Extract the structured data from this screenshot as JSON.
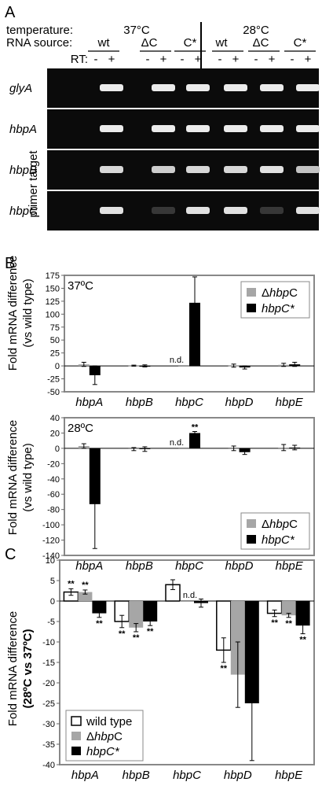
{
  "panel_a": {
    "letter": "A",
    "row_labels": {
      "temperature": "temperature:",
      "rna_source": "RNA source:",
      "rt": "RT:"
    },
    "temperatures": [
      "37°C",
      "28°C"
    ],
    "sources": [
      "wt",
      "ΔC",
      "C*",
      "wt",
      "ΔC",
      "C*"
    ],
    "rt_minus": "-",
    "rt_plus": "+",
    "side_label": "primer target",
    "genes": [
      "glyA",
      "hbpA",
      "hbpB",
      "hbpC"
    ],
    "band_intensity": [
      [
        1,
        1,
        1,
        1,
        1,
        1
      ],
      [
        1,
        1,
        1,
        1,
        1,
        1
      ],
      [
        0.9,
        0.85,
        0.9,
        0.9,
        0.95,
        0.8
      ],
      [
        0.95,
        0.1,
        0.95,
        0.95,
        0.1,
        0.95
      ]
    ]
  },
  "panel_b": {
    "letter": "B",
    "ylabel_line1": "Fold mRNA difference",
    "ylabel_line2": "(vs wild type)",
    "nd": "n.d.",
    "legend": {
      "delta_prefix": "Δ",
      "delta_italic": "hbp",
      "delta_suffix": "C",
      "cstar": "hbpC*"
    },
    "colors": {
      "delta": "#a6a6a6",
      "cstar": "#000000"
    }
  },
  "chart_data": [
    {
      "type": "bar",
      "annotation": "37ºC",
      "categories": [
        "hbpA",
        "hbpB",
        "hbpC",
        "hbpD",
        "hbpE"
      ],
      "series": [
        {
          "name": "ΔhbpC",
          "values": [
            3,
            0.5,
            0,
            0.5,
            2
          ],
          "errors": [
            4,
            1,
            0,
            3,
            3
          ]
        },
        {
          "name": "hbpC*",
          "values": [
            -18,
            0,
            122,
            -3,
            3
          ],
          "errors": [
            18,
            2,
            50,
            3,
            4
          ]
        }
      ],
      "ylim": [
        -50,
        175
      ],
      "yticks": [
        -50,
        -25,
        0,
        25,
        50,
        75,
        100,
        125,
        150,
        175
      ],
      "na_index": 2,
      "legend_position": "top-right"
    },
    {
      "type": "bar",
      "annotation": "28ºC",
      "categories": [
        "hbpA",
        "hbpB",
        "hbpC",
        "hbpD",
        "hbpE"
      ],
      "series": [
        {
          "name": "ΔhbpC",
          "values": [
            3,
            -1,
            0,
            0,
            1
          ],
          "errors": [
            3,
            2,
            0,
            3,
            4
          ]
        },
        {
          "name": "hbpC*",
          "values": [
            -73,
            -1,
            20,
            -5,
            1
          ],
          "errors": [
            58,
            3,
            2,
            3,
            3
          ]
        }
      ],
      "significance": [
        [],
        [
          "",
          "",
          "**",
          "",
          ""
        ]
      ],
      "ylim": [
        -140,
        40
      ],
      "yticks": [
        -140,
        -120,
        -100,
        -80,
        -60,
        -40,
        -20,
        0,
        20,
        40
      ],
      "na_index": 2,
      "legend_position": "bottom-right"
    },
    {
      "type": "bar",
      "categories": [
        "hbpA",
        "hbpB",
        "hbpC",
        "hbpD",
        "hbpE"
      ],
      "ylabel_line1": "Fold mRNA difference",
      "ylabel_line2": "(28ºC vs 37ºC)",
      "series": [
        {
          "name": "wild type",
          "values": [
            2.2,
            -5,
            4,
            -12,
            -3
          ],
          "errors": [
            0.8,
            1.5,
            1.2,
            3,
            0.8
          ],
          "stars": [
            "**",
            "**",
            "",
            "**",
            "**"
          ]
        },
        {
          "name": "ΔhbpC",
          "values": [
            2.2,
            -6.5,
            0,
            -18,
            -3.5
          ],
          "errors": [
            0.5,
            1,
            0,
            8,
            0.5
          ],
          "stars": [
            "**",
            "**",
            "",
            "",
            "**"
          ]
        },
        {
          "name": "hbpC*",
          "values": [
            -3,
            -5,
            -0.5,
            -25,
            -6
          ],
          "errors": [
            1,
            1,
            1,
            14,
            2
          ],
          "stars": [
            "**",
            "**",
            "",
            "",
            "**"
          ]
        }
      ],
      "ylim": [
        -40,
        10
      ],
      "yticks": [
        -40,
        -35,
        -30,
        -25,
        -20,
        -15,
        -10,
        -5,
        0,
        5,
        10
      ],
      "na_index": 2,
      "legend_position": "bottom-left"
    }
  ],
  "panel_c": {
    "letter": "C",
    "nd": "n.d.",
    "legend": {
      "wt": "wild type",
      "delta_prefix": "Δ",
      "delta_italic": "hbp",
      "delta_suffix": "C",
      "cstar": "hbpC*"
    }
  }
}
